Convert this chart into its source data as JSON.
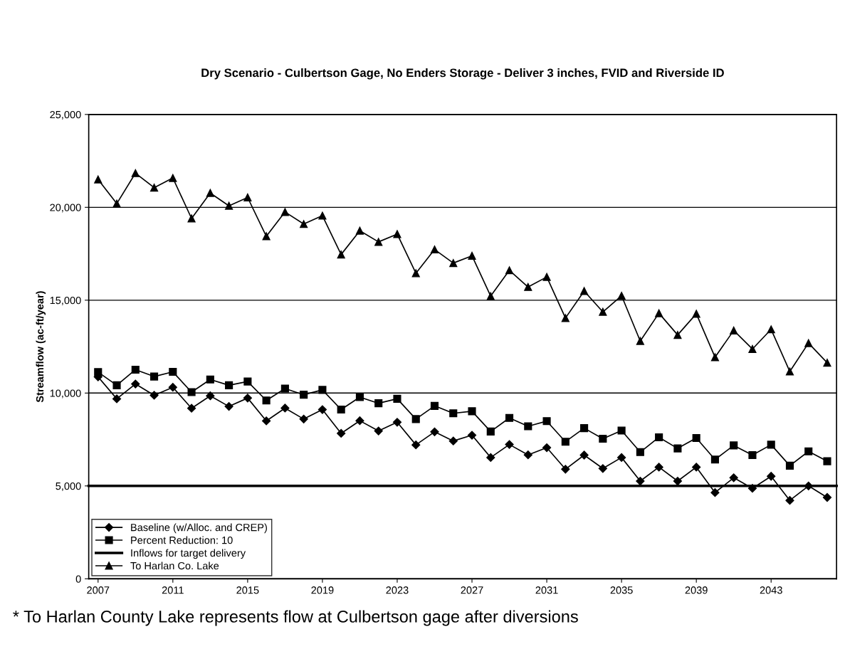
{
  "chart_data": {
    "type": "line",
    "title": "Dry Scenario - Culbertson Gage, No Enders Storage - Deliver 3 inches, FVID and Riverside ID",
    "ylabel": "Streamflow (ac-ft/year)",
    "x": [
      2007,
      2008,
      2009,
      2010,
      2011,
      2012,
      2013,
      2014,
      2015,
      2016,
      2017,
      2018,
      2019,
      2020,
      2021,
      2022,
      2023,
      2024,
      2025,
      2026,
      2027,
      2028,
      2029,
      2030,
      2031,
      2032,
      2033,
      2034,
      2035,
      2036,
      2037,
      2038,
      2039,
      2040,
      2041,
      2042,
      2043,
      2044,
      2045,
      2046
    ],
    "series": [
      {
        "name": "Baseline (w/Alloc. and CREP)",
        "color": "#000000",
        "marker": "diamond",
        "values": [
          10870,
          9690,
          10490,
          9880,
          10310,
          9180,
          9850,
          9280,
          9730,
          8500,
          9190,
          8600,
          9110,
          7830,
          8510,
          7960,
          8430,
          7210,
          7910,
          7420,
          7730,
          6530,
          7230,
          6670,
          7060,
          5900,
          6660,
          5940,
          6530,
          5260,
          6010,
          5260,
          6010,
          4640,
          5440,
          4870,
          5520,
          4220,
          5000,
          4380
        ]
      },
      {
        "name": "Percent Reduction: 10",
        "color": "#000000",
        "marker": "square",
        "values": [
          11130,
          10420,
          11260,
          10890,
          11140,
          10050,
          10730,
          10420,
          10620,
          9600,
          10240,
          9910,
          10170,
          9110,
          9780,
          9450,
          9690,
          8600,
          9310,
          8910,
          9020,
          7930,
          8660,
          8210,
          8490,
          7380,
          8110,
          7540,
          7980,
          6820,
          7620,
          7020,
          7580,
          6420,
          7180,
          6660,
          7220,
          6090,
          6860,
          6330
        ]
      },
      {
        "name": "Inflows for target delivery",
        "color": "#000000",
        "marker": "none",
        "x": [
          2006.5,
          2046.5
        ],
        "values": [
          5000,
          5000
        ]
      },
      {
        "name": "To Harlan Co. Lake",
        "color": "#000000",
        "marker": "triangle",
        "values": [
          21500,
          20200,
          21840,
          21060,
          21580,
          19400,
          20770,
          20080,
          20530,
          18440,
          19750,
          19100,
          19550,
          17460,
          18740,
          18140,
          18560,
          16450,
          17730,
          17000,
          17390,
          15220,
          16610,
          15710,
          16250,
          14040,
          15490,
          14370,
          15240,
          12800,
          14300,
          13130,
          14270,
          11930,
          13370,
          12370,
          13430,
          11160,
          12690,
          11630
        ]
      }
    ],
    "xlim": [
      2006.5,
      2046.5
    ],
    "xticks": [
      2007,
      2011,
      2015,
      2019,
      2023,
      2027,
      2031,
      2035,
      2039,
      2043
    ],
    "ylim": [
      0,
      25000
    ],
    "yticks": [
      {
        "value": 0,
        "label": "0"
      },
      {
        "value": 5000,
        "label": "5,000"
      },
      {
        "value": 10000,
        "label": "10,000"
      },
      {
        "value": 15000,
        "label": "15,000"
      },
      {
        "value": 20000,
        "label": "20,000"
      },
      {
        "value": 25000,
        "label": "25,000"
      }
    ],
    "grid": "y",
    "legend": "bottom left",
    "line_style": "solid",
    "annotations": [
      "* To Harlan County Lake represents flow at Culbertson gage after diversions"
    ]
  }
}
